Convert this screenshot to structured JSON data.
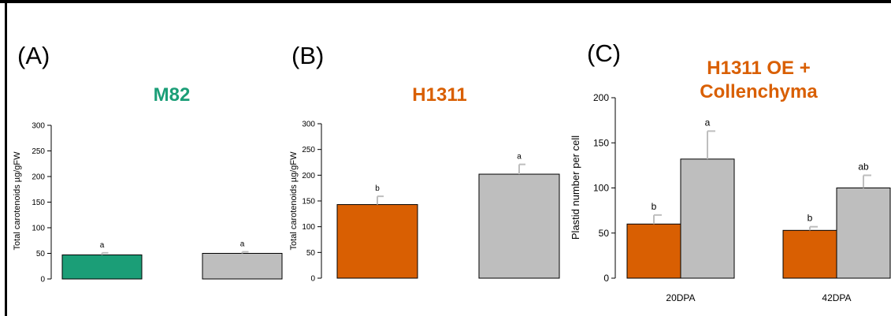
{
  "colors": {
    "frame": "#000000",
    "gray_bar": "#BEBEBE",
    "orange": "#D95F02",
    "green": "#1B9E77",
    "error_bar": "#BEBEBE"
  },
  "chart_data": [
    {
      "panel_label": "(A)",
      "type": "bar",
      "title": "M82",
      "title_color": "#1B9E77",
      "ylabel": "Total carotenoids µg/gFW",
      "ylim": [
        0,
        300
      ],
      "yticks": [
        "0",
        "50",
        "100",
        "150",
        "200",
        "250",
        "300"
      ],
      "categories": [
        "",
        ""
      ],
      "values": [
        47,
        50
      ],
      "errors": [
        4,
        3
      ],
      "bar_colors": [
        "#1B9E77",
        "#BEBEBE"
      ],
      "letters": [
        "a",
        "a"
      ]
    },
    {
      "panel_label": "(B)",
      "type": "bar",
      "title": "H1311",
      "title_color": "#D95F02",
      "ylabel": "Total carotenoids µg/gFW",
      "ylim": [
        0,
        300
      ],
      "yticks": [
        "0",
        "50",
        "100",
        "150",
        "200",
        "250",
        "300"
      ],
      "categories": [
        "",
        ""
      ],
      "values": [
        143,
        202
      ],
      "errors": [
        16,
        19
      ],
      "bar_colors": [
        "#D95F02",
        "#BEBEBE"
      ],
      "letters": [
        "b",
        "a"
      ]
    },
    {
      "panel_label": "(C)",
      "type": "bar",
      "title_lines": [
        "H1311 OE +",
        "Collenchyma"
      ],
      "title_color": "#D95F02",
      "ylabel": "Plastid number per cell",
      "ylim": [
        0,
        200
      ],
      "yticks": [
        "0",
        "50",
        "100",
        "150",
        "200"
      ],
      "categories": [
        "20DPA",
        "42DPA"
      ],
      "series": [
        {
          "values": [
            60,
            53
          ],
          "errors": [
            10,
            4
          ],
          "color": "#D95F02",
          "letters": [
            "b",
            "b"
          ]
        },
        {
          "values": [
            132,
            100
          ],
          "errors": [
            31,
            14
          ],
          "color": "#BEBEBE",
          "letters": [
            "a",
            "ab"
          ]
        }
      ]
    }
  ]
}
